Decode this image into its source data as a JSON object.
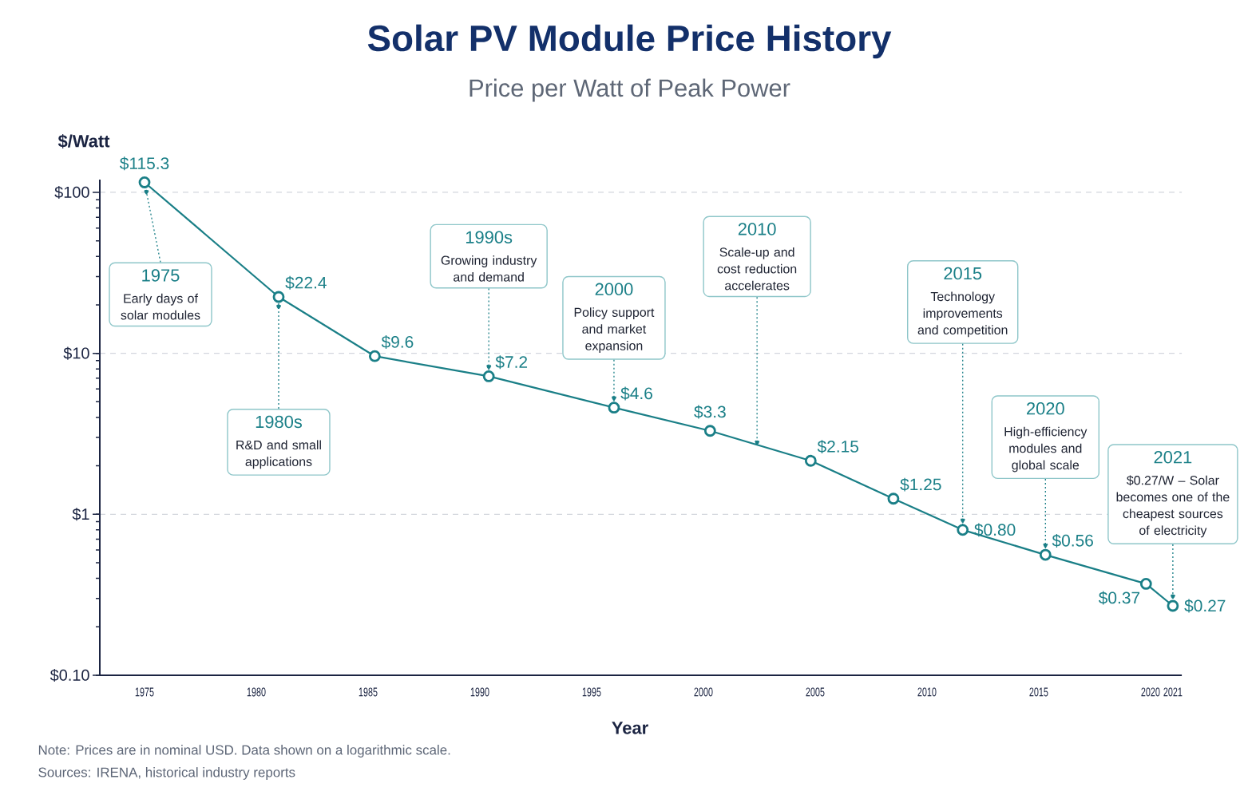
{
  "chart_data": {
    "type": "line",
    "title": "Solar PV Module Price History",
    "subtitle": "Price per Watt of Peak Power",
    "xlabel": "Year",
    "ylabel": "$/Watt",
    "x": [
      1975,
      1981,
      1985.3,
      1990.4,
      1996,
      2000.3,
      2004.8,
      2008.5,
      2011.6,
      2015.3,
      2019.8,
      2021
    ],
    "values": [
      115.3,
      22.4,
      9.6,
      7.2,
      4.6,
      3.3,
      2.15,
      1.25,
      0.8,
      0.56,
      0.37,
      0.27
    ],
    "value_labels": [
      "$115.3",
      "$22.4",
      "$9.6",
      "$7.2",
      "$4.6",
      "$3.3",
      "$2.15",
      "$1.25",
      "$0.80",
      "$0.56",
      "$0.37",
      "$0.27"
    ],
    "color": "#1a7f87",
    "marker": "circle",
    "log": true,
    "grid": "y",
    "xlim": [
      1973,
      2021.4
    ],
    "ylim": [
      0.1,
      120
    ],
    "xticks": [
      1975,
      1980,
      1985,
      1990,
      1995,
      2000,
      2005,
      2010,
      2015,
      2020,
      2021
    ],
    "yticks": [
      {
        "value": 0.1,
        "label": "$0.10"
      },
      {
        "value": 1,
        "label": "$1"
      },
      {
        "value": 10,
        "label": "$10"
      },
      {
        "value": 100,
        "label": "$100"
      }
    ],
    "annotations": [
      {
        "text": "1975",
        "x": 1975,
        "y": 115.3
      },
      "Early days of solar modules",
      {
        "text": "1980s",
        "x": 1981,
        "y": 22.4
      },
      "R&D and small applications",
      "1990s",
      {
        "text": "Growing industry and demand",
        "x": 1990.4,
        "y": 7.2
      },
      "2000",
      {
        "text": "Policy support and market expansion",
        "x": 1996,
        "y": 4.6
      },
      "2010",
      {
        "text": "Scale-up and cost reduction accelerates",
        "x": 2002.4,
        "y": 2.8
      },
      "2015",
      {
        "text": "Technology improvements and competition",
        "x": 2011.6,
        "y": 0.8
      },
      "2020",
      {
        "text": "High-efficiency modules and global scale",
        "x": 2015.3,
        "y": 0.56
      },
      "2021",
      {
        "text": "$0.27/W – Solar becomes one of the cheapest sources of electricity",
        "x": 2021,
        "y": 0.27
      },
      "Note: Prices are in nominal USD. Data shown on a logarithmic scale.",
      "Sources: IRENA, historical industry reports"
    ]
  }
}
